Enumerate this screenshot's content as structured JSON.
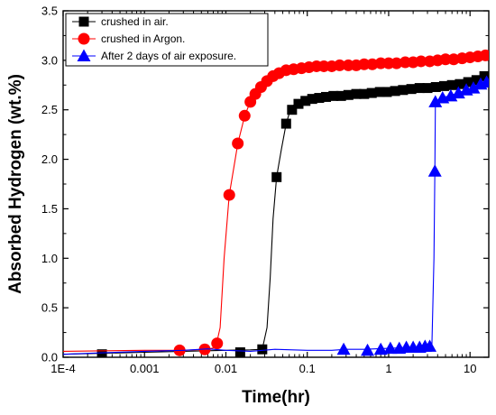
{
  "chart_data": {
    "type": "line",
    "title": "",
    "xlabel": "Time(hr)",
    "ylabel": "Absorbed Hydrogen (wt.%)",
    "xscale": "log",
    "xlim": [
      0.0001,
      17
    ],
    "ylim": [
      0,
      3.5
    ],
    "x_ticks": [
      {
        "value": 0.0001,
        "label": "1E-4"
      },
      {
        "value": 0.001,
        "label": "0.001"
      },
      {
        "value": 0.01,
        "label": "0.01"
      },
      {
        "value": 0.1,
        "label": "0.1"
      },
      {
        "value": 1,
        "label": "1"
      },
      {
        "value": 10,
        "label": "10"
      }
    ],
    "y_ticks": [
      {
        "value": 0.0,
        "label": "0.0"
      },
      {
        "value": 0.5,
        "label": "0.5"
      },
      {
        "value": 1.0,
        "label": "1.0"
      },
      {
        "value": 1.5,
        "label": "1.5"
      },
      {
        "value": 2.0,
        "label": "2.0"
      },
      {
        "value": 2.5,
        "label": "2.5"
      },
      {
        "value": 3.0,
        "label": "3.0"
      },
      {
        "value": 3.5,
        "label": "3.5"
      }
    ],
    "legend_position": "top-left",
    "grid": false,
    "series": [
      {
        "name": "crushed in air.",
        "color": "#000000",
        "marker": "square",
        "curve": [
          [
            0.0001,
            0.03
          ],
          [
            0.0003,
            0.04
          ],
          [
            0.001,
            0.05
          ],
          [
            0.003,
            0.06
          ],
          [
            0.01,
            0.07
          ],
          [
            0.02,
            0.075
          ],
          [
            0.028,
            0.08
          ],
          [
            0.032,
            0.3
          ],
          [
            0.035,
            0.8
          ],
          [
            0.038,
            1.4
          ],
          [
            0.042,
            1.82
          ],
          [
            0.048,
            2.1
          ],
          [
            0.055,
            2.36
          ],
          [
            0.062,
            2.5
          ],
          [
            0.07,
            2.56
          ],
          [
            0.08,
            2.59
          ],
          [
            0.1,
            2.62
          ],
          [
            0.15,
            2.64
          ],
          [
            0.3,
            2.66
          ],
          [
            0.6,
            2.68
          ],
          [
            1,
            2.69
          ],
          [
            2,
            2.71
          ],
          [
            4,
            2.73
          ],
          [
            8,
            2.76
          ],
          [
            12,
            2.8
          ],
          [
            16,
            2.86
          ]
        ],
        "markers": [
          [
            0.0003,
            0.03
          ],
          [
            0.015,
            0.05
          ],
          [
            0.028,
            0.08
          ],
          [
            0.042,
            1.82
          ],
          [
            0.055,
            2.36
          ],
          [
            0.065,
            2.5
          ],
          [
            0.078,
            2.56
          ],
          [
            0.095,
            2.59
          ],
          [
            0.115,
            2.61
          ],
          [
            0.14,
            2.62
          ],
          [
            0.17,
            2.63
          ],
          [
            0.21,
            2.64
          ],
          [
            0.26,
            2.64
          ],
          [
            0.32,
            2.65
          ],
          [
            0.4,
            2.66
          ],
          [
            0.5,
            2.66
          ],
          [
            0.62,
            2.67
          ],
          [
            0.78,
            2.68
          ],
          [
            0.95,
            2.68
          ],
          [
            1.2,
            2.69
          ],
          [
            1.5,
            2.7
          ],
          [
            1.9,
            2.71
          ],
          [
            2.4,
            2.72
          ],
          [
            3.0,
            2.72
          ],
          [
            3.8,
            2.73
          ],
          [
            4.8,
            2.74
          ],
          [
            6.0,
            2.75
          ],
          [
            7.5,
            2.76
          ],
          [
            9.5,
            2.78
          ],
          [
            12,
            2.8
          ],
          [
            15,
            2.84
          ]
        ]
      },
      {
        "name": "crushed in Argon.",
        "color": "#ff0000",
        "marker": "circle",
        "curve": [
          [
            0.0001,
            0.06
          ],
          [
            0.001,
            0.07
          ],
          [
            0.003,
            0.07
          ],
          [
            0.006,
            0.08
          ],
          [
            0.0075,
            0.1
          ],
          [
            0.0085,
            0.3
          ],
          [
            0.0095,
            1.0
          ],
          [
            0.011,
            1.64
          ],
          [
            0.013,
            2.0
          ],
          [
            0.014,
            2.16
          ],
          [
            0.016,
            2.35
          ],
          [
            0.017,
            2.44
          ],
          [
            0.02,
            2.58
          ],
          [
            0.025,
            2.72
          ],
          [
            0.03,
            2.8
          ],
          [
            0.04,
            2.86
          ],
          [
            0.06,
            2.91
          ],
          [
            0.1,
            2.93
          ],
          [
            0.3,
            2.95
          ],
          [
            1,
            2.97
          ],
          [
            3,
            2.99
          ],
          [
            8,
            3.02
          ],
          [
            16,
            3.05
          ]
        ],
        "markers": [
          [
            0.0027,
            0.07
          ],
          [
            0.0055,
            0.08
          ],
          [
            0.0078,
            0.14
          ],
          [
            0.011,
            1.64
          ],
          [
            0.014,
            2.16
          ],
          [
            0.017,
            2.44
          ],
          [
            0.02,
            2.58
          ],
          [
            0.023,
            2.66
          ],
          [
            0.027,
            2.73
          ],
          [
            0.032,
            2.79
          ],
          [
            0.038,
            2.84
          ],
          [
            0.045,
            2.87
          ],
          [
            0.055,
            2.9
          ],
          [
            0.068,
            2.91
          ],
          [
            0.085,
            2.92
          ],
          [
            0.105,
            2.93
          ],
          [
            0.13,
            2.94
          ],
          [
            0.16,
            2.94
          ],
          [
            0.2,
            2.94
          ],
          [
            0.25,
            2.95
          ],
          [
            0.32,
            2.95
          ],
          [
            0.4,
            2.95
          ],
          [
            0.5,
            2.96
          ],
          [
            0.63,
            2.96
          ],
          [
            0.8,
            2.97
          ],
          [
            1.0,
            2.97
          ],
          [
            1.25,
            2.97
          ],
          [
            1.6,
            2.98
          ],
          [
            2.0,
            2.98
          ],
          [
            2.5,
            2.99
          ],
          [
            3.2,
            2.99
          ],
          [
            4.0,
            3.0
          ],
          [
            5.0,
            3.01
          ],
          [
            6.3,
            3.01
          ],
          [
            8.0,
            3.02
          ],
          [
            10,
            3.03
          ],
          [
            12.5,
            3.04
          ],
          [
            15.5,
            3.05
          ]
        ]
      },
      {
        "name": "After 2 days of air exposure.",
        "color": "#0000ff",
        "marker": "triangle",
        "curve": [
          [
            0.0001,
            0.03
          ],
          [
            0.0003,
            0.045
          ],
          [
            0.001,
            0.06
          ],
          [
            0.003,
            0.07
          ],
          [
            0.006,
            0.085
          ],
          [
            0.01,
            0.07
          ],
          [
            0.02,
            0.06
          ],
          [
            0.04,
            0.08
          ],
          [
            0.1,
            0.07
          ],
          [
            0.2,
            0.07
          ],
          [
            0.3,
            0.08
          ],
          [
            0.5,
            0.08
          ],
          [
            1,
            0.09
          ],
          [
            2,
            0.1
          ],
          [
            3.4,
            0.11
          ],
          [
            3.6,
            1.0
          ],
          [
            3.7,
            1.88
          ],
          [
            3.75,
            2.58
          ],
          [
            4.5,
            2.62
          ],
          [
            6,
            2.65
          ],
          [
            9,
            2.7
          ],
          [
            13,
            2.76
          ],
          [
            16,
            2.8
          ]
        ],
        "markers": [
          [
            0.28,
            0.08
          ],
          [
            0.55,
            0.07
          ],
          [
            0.8,
            0.08
          ],
          [
            1.05,
            0.09
          ],
          [
            1.35,
            0.09
          ],
          [
            1.65,
            0.1
          ],
          [
            2.0,
            0.1
          ],
          [
            2.4,
            0.1
          ],
          [
            2.8,
            0.11
          ],
          [
            3.2,
            0.11
          ],
          [
            3.7,
            1.88
          ],
          [
            3.75,
            2.58
          ],
          [
            4.6,
            2.62
          ],
          [
            5.8,
            2.64
          ],
          [
            7.2,
            2.67
          ],
          [
            9.0,
            2.7
          ],
          [
            11,
            2.72
          ],
          [
            13.5,
            2.76
          ],
          [
            16,
            2.78
          ]
        ]
      }
    ]
  }
}
